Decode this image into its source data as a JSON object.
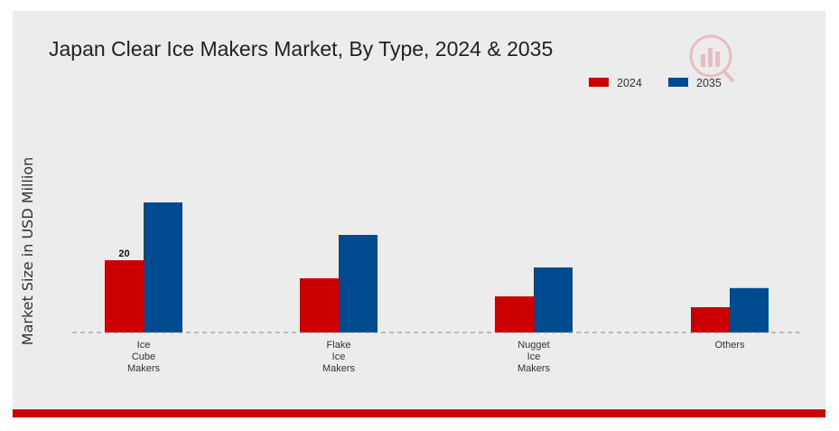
{
  "chart_data": {
    "type": "bar",
    "title": "Japan Clear Ice Makers Market, By Type, 2024 & 2035",
    "xlabel": "",
    "ylabel": "Market Size in USD Million",
    "categories": [
      [
        "Ice",
        "Cube",
        "Makers"
      ],
      [
        "Flake",
        "Ice",
        "Makers"
      ],
      [
        "Nugget",
        "Ice",
        "Makers"
      ],
      [
        "Others"
      ]
    ],
    "series": [
      {
        "name": "2024",
        "color": "#cc0000",
        "values": [
          20,
          15,
          10,
          7
        ]
      },
      {
        "name": "2035",
        "color": "#004a8f",
        "values": [
          36,
          27,
          18,
          12.3
        ]
      }
    ],
    "data_labels": [
      {
        "series": 0,
        "index": 0,
        "text": "20"
      }
    ],
    "ylim": [
      0,
      50
    ],
    "grid": false,
    "legend_position": "top-right",
    "baseline_style": "dashed"
  }
}
